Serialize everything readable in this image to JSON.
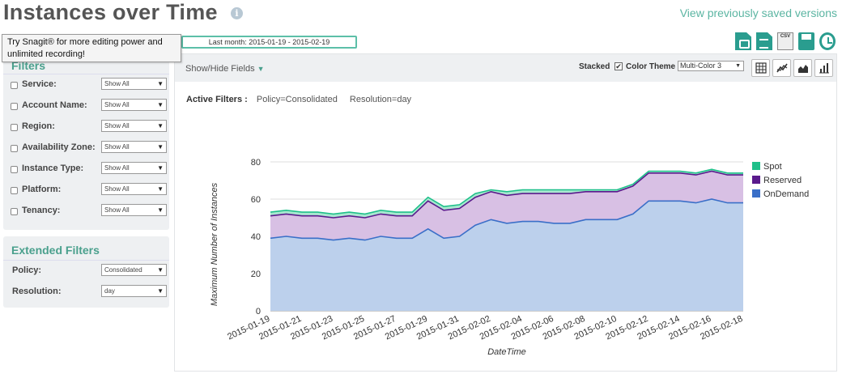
{
  "header": {
    "title": "Instances over Time",
    "info_icon": "i",
    "saved_link": "View previously saved versions",
    "date_range": "Last month:  2015-01-19 - 2015-02-19"
  },
  "tooltip": {
    "text": "Try Snagit® for more editing power and unlimited recording!"
  },
  "export": {
    "csv_label": "CSV"
  },
  "filters": {
    "title": "Filters",
    "items": [
      {
        "label": "Service:",
        "value": "Show All"
      },
      {
        "label": "Account Name:",
        "value": "Show All"
      },
      {
        "label": "Region:",
        "value": "Show All"
      },
      {
        "label": "Availability Zone:",
        "value": "Show All"
      },
      {
        "label": "Instance Type:",
        "value": "Show All"
      },
      {
        "label": "Platform:",
        "value": "Show All"
      },
      {
        "label": "Tenancy:",
        "value": "Show All"
      }
    ]
  },
  "extended_filters": {
    "title": "Extended Filters",
    "items": [
      {
        "label": "Policy:",
        "value": "Consolidated"
      },
      {
        "label": "Resolution:",
        "value": "day"
      }
    ]
  },
  "toolbar": {
    "show_hide": "Show/Hide Fields",
    "stacked_label": "Stacked",
    "stacked_check": "✔",
    "color_theme_label": "Color Theme",
    "color_theme_value": "Multi-Color 3"
  },
  "active_filters": {
    "label": "Active Filters :",
    "policy": "Policy=Consolidated",
    "resolution": "Resolution=day"
  },
  "chart_data": {
    "type": "area",
    "stacked": true,
    "xlabel": "DateTime",
    "ylabel": "Maximum Number of Instances",
    "ylim": [
      0,
      80
    ],
    "yticks": [
      0,
      20,
      40,
      60,
      80
    ],
    "grid": true,
    "legend_position": "right",
    "x": [
      "2015-01-19",
      "2015-01-20",
      "2015-01-21",
      "2015-01-22",
      "2015-01-23",
      "2015-01-24",
      "2015-01-25",
      "2015-01-26",
      "2015-01-27",
      "2015-01-28",
      "2015-01-29",
      "2015-01-30",
      "2015-01-31",
      "2015-02-01",
      "2015-02-02",
      "2015-02-03",
      "2015-02-04",
      "2015-02-05",
      "2015-02-06",
      "2015-02-07",
      "2015-02-08",
      "2015-02-09",
      "2015-02-10",
      "2015-02-11",
      "2015-02-12",
      "2015-02-13",
      "2015-02-14",
      "2015-02-15",
      "2015-02-16",
      "2015-02-17",
      "2015-02-18"
    ],
    "xtick_labels": [
      "2015-01-19",
      "2015-01-21",
      "2015-01-23",
      "2015-01-25",
      "2015-01-27",
      "2015-01-29",
      "2015-01-31",
      "2015-02-02",
      "2015-02-04",
      "2015-02-06",
      "2015-02-08",
      "2015-02-10",
      "2015-02-12",
      "2015-02-14",
      "2015-02-16",
      "2015-02-18"
    ],
    "series": [
      {
        "name": "OnDemand",
        "color": "#3a6fc8",
        "fill": "#bcd0ec",
        "values": [
          39,
          40,
          39,
          39,
          38,
          39,
          38,
          40,
          39,
          39,
          44,
          39,
          40,
          46,
          49,
          47,
          48,
          48,
          47,
          47,
          49,
          49,
          49,
          52,
          59,
          59,
          59,
          58,
          60,
          58,
          58
        ]
      },
      {
        "name": "Reserved",
        "color": "#5a1a8c",
        "fill": "#d8c0e4",
        "values": [
          12,
          12,
          12,
          12,
          12,
          12,
          12,
          12,
          12,
          12,
          15,
          15,
          15,
          15,
          15,
          15,
          15,
          15,
          16,
          16,
          15,
          15,
          15,
          15,
          15,
          15,
          15,
          15,
          15,
          15,
          15
        ]
      },
      {
        "name": "Spot",
        "color": "#1fc08a",
        "fill": "#a8e8d0",
        "values": [
          2,
          2,
          2,
          2,
          2,
          2,
          2,
          2,
          2,
          2,
          2,
          2,
          2,
          2,
          1,
          2,
          2,
          2,
          2,
          2,
          1,
          1,
          1,
          1,
          1,
          1,
          1,
          1,
          1,
          1,
          1
        ]
      }
    ],
    "legend_order": [
      "Spot",
      "Reserved",
      "OnDemand"
    ]
  }
}
